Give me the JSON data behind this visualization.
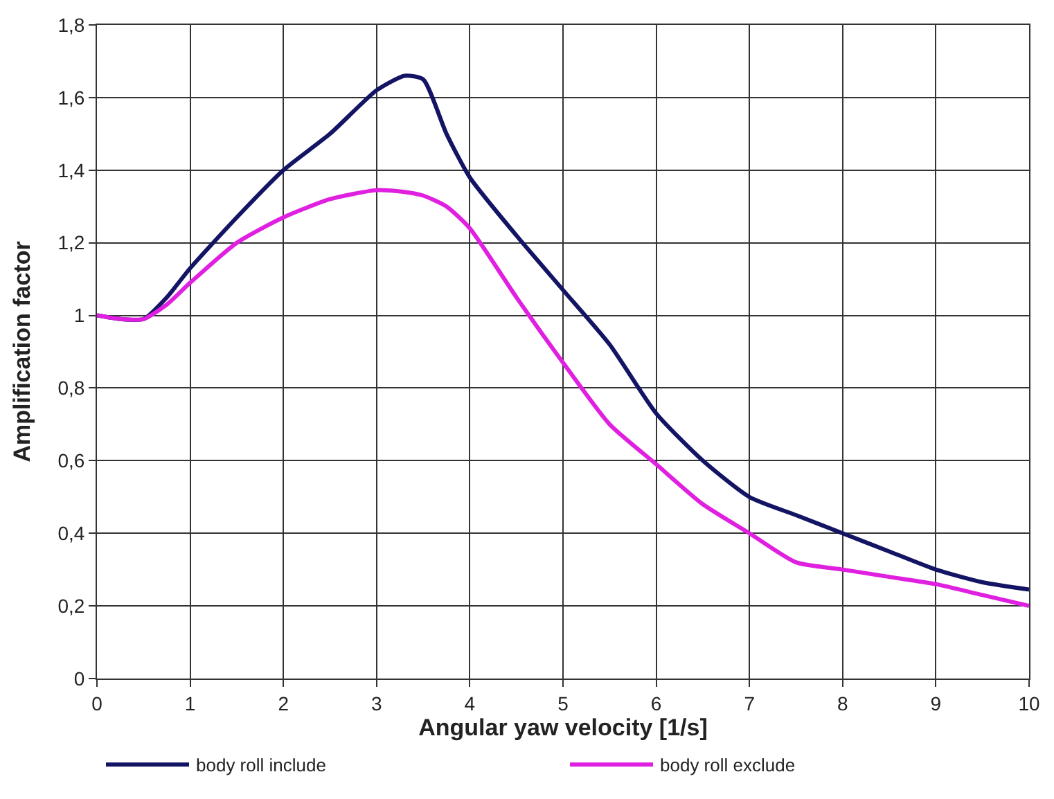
{
  "chart_data": {
    "type": "line",
    "xlabel": "Angular yaw velocity [1/s]",
    "ylabel": "Amplification factor",
    "x": [
      0,
      0.25,
      0.5,
      0.75,
      1,
      1.5,
      2,
      2.5,
      3,
      3.3,
      3.5,
      3.75,
      4,
      4.5,
      5,
      5.5,
      6,
      6.5,
      7,
      7.5,
      8,
      8.5,
      9,
      9.5,
      10
    ],
    "series": [
      {
        "name": "body roll include",
        "color": "#141464",
        "values": [
          1.0,
          0.99,
          0.99,
          1.05,
          1.13,
          1.27,
          1.4,
          1.5,
          1.62,
          1.66,
          1.65,
          1.5,
          1.38,
          1.22,
          1.07,
          0.92,
          0.73,
          0.6,
          0.5,
          0.45,
          0.4,
          0.35,
          0.3,
          0.265,
          0.245
        ]
      },
      {
        "name": "body roll exclude",
        "color": "#e020e0",
        "values": [
          1.0,
          0.99,
          0.99,
          1.03,
          1.09,
          1.2,
          1.27,
          1.32,
          1.345,
          1.34,
          1.33,
          1.3,
          1.24,
          1.05,
          0.87,
          0.7,
          0.59,
          0.48,
          0.4,
          0.32,
          0.3,
          0.28,
          0.26,
          0.23,
          0.2
        ]
      }
    ],
    "xlim": [
      0,
      10
    ],
    "xticks": [
      0,
      1,
      2,
      3,
      4,
      5,
      6,
      7,
      8,
      9,
      10
    ],
    "ylim": [
      0,
      1.8
    ],
    "yticks": [
      0,
      {
        "value": 0.2,
        "label": "0,2"
      },
      {
        "value": 0.4,
        "label": "0,4"
      },
      {
        "value": 0.6,
        "label": "0,6"
      },
      {
        "value": 0.8,
        "label": "0,8"
      },
      1,
      {
        "value": 1.2,
        "label": "1,2"
      },
      {
        "value": 1.4,
        "label": "1,4"
      },
      {
        "value": 1.6,
        "label": "1,6"
      },
      {
        "value": 1.8,
        "label": "1,8"
      }
    ],
    "grid": true,
    "legend": "bottom",
    "marker": "none",
    "line_style": "solid"
  }
}
